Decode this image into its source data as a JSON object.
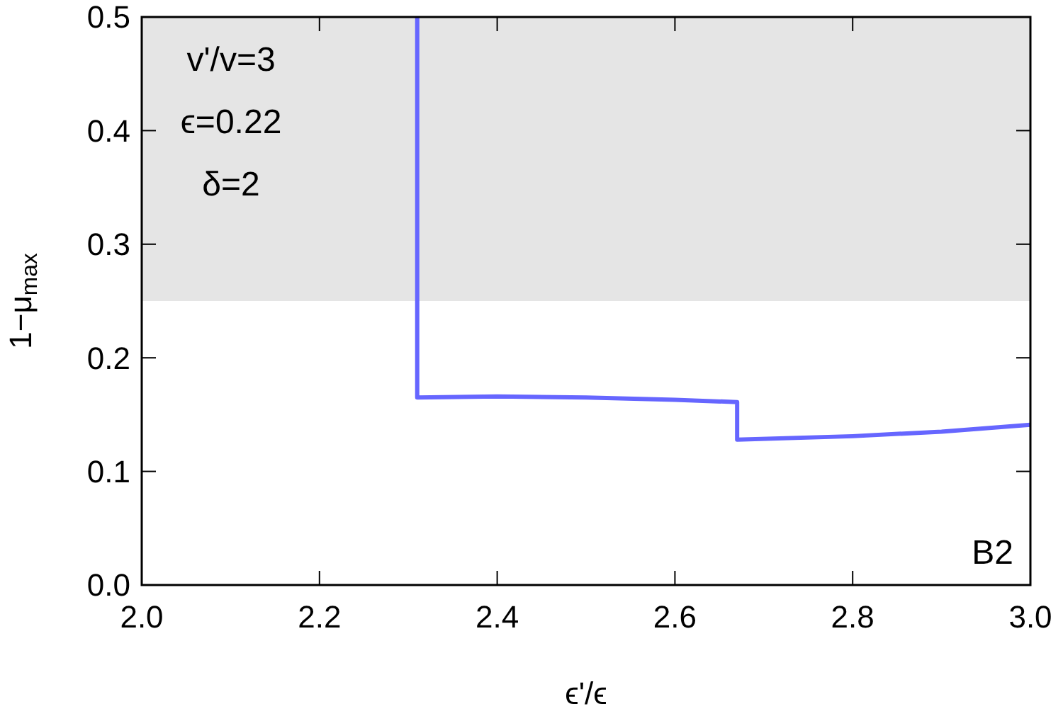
{
  "chart_data": {
    "type": "line",
    "xlabel": "ϵ'/ϵ",
    "ylabel": "1−μ$_{max}$",
    "xlim": [
      2.0,
      3.0
    ],
    "ylim": [
      0.0,
      0.5
    ],
    "xticks": [
      {
        "value": 2.0,
        "label": "2.0"
      },
      {
        "value": 2.2,
        "label": "2.2"
      },
      {
        "value": 2.4,
        "label": "2.4"
      },
      {
        "value": 2.6,
        "label": "2.6"
      },
      {
        "value": 2.8,
        "label": "2.8"
      },
      {
        "value": 3.0,
        "label": "3.0"
      }
    ],
    "yticks": [
      {
        "value": 0.0,
        "label": "0.0"
      },
      {
        "value": 0.1,
        "label": "0.1"
      },
      {
        "value": 0.2,
        "label": "0.2"
      },
      {
        "value": 0.3,
        "label": "0.3"
      },
      {
        "value": 0.4,
        "label": "0.4"
      },
      {
        "value": 0.5,
        "label": "0.5"
      }
    ],
    "series": [
      {
        "color": "#6666ff",
        "x": [
          2.31,
          2.31,
          2.4,
          2.5,
          2.6,
          2.67,
          2.67,
          2.8,
          2.9,
          3.0
        ],
        "values": [
          0.5,
          0.165,
          0.166,
          0.165,
          0.163,
          0.161,
          0.128,
          0.131,
          0.135,
          0.141
        ]
      }
    ],
    "bands": [
      {
        "axis": "y",
        "from": 0.25,
        "to": 0.5,
        "color": "#e5e5e5"
      }
    ],
    "annotations": [
      "v'/v=3",
      "ϵ=0.22",
      "δ=2",
      "B2"
    ],
    "grid": false,
    "marker": "none",
    "line_style": "solid"
  }
}
